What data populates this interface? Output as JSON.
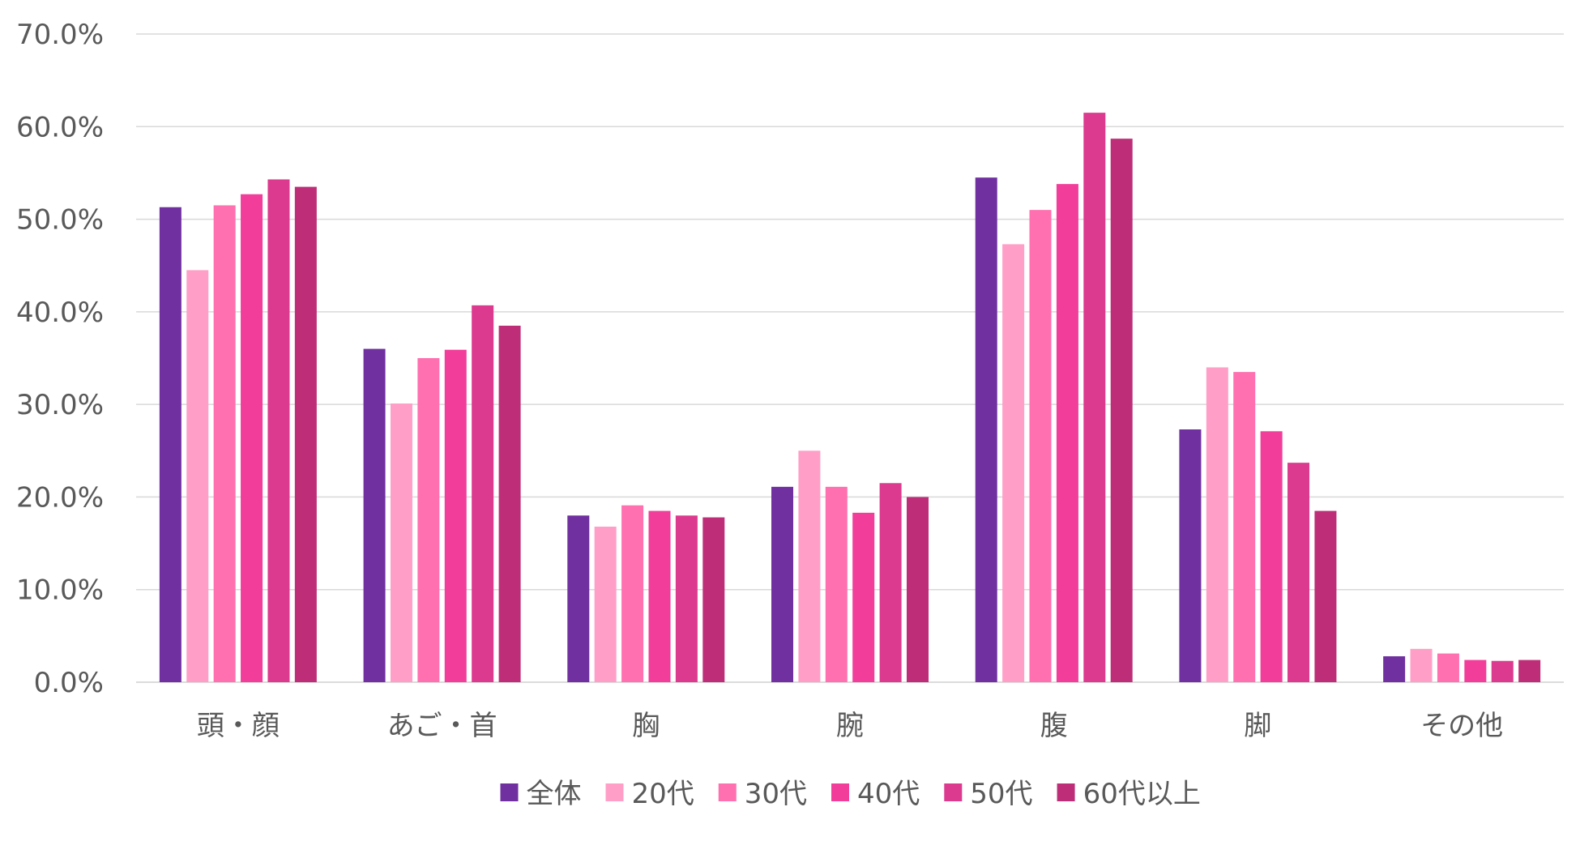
{
  "chart_data": {
    "type": "bar",
    "title": "",
    "xlabel": "",
    "ylabel": "",
    "ylim": [
      0,
      70
    ],
    "yticks": [
      "0.0%",
      "10.0%",
      "20.0%",
      "30.0%",
      "40.0%",
      "50.0%",
      "60.0%",
      "70.0%"
    ],
    "grid": true,
    "legend_position": "bottom",
    "categories": [
      "頭・顔",
      "あご・首",
      "胸",
      "腕",
      "腹",
      "脚",
      "その他"
    ],
    "series": [
      {
        "name": "全体",
        "color": "#7030A0",
        "values": [
          51.3,
          36.0,
          18.0,
          21.1,
          54.5,
          27.3,
          2.8
        ]
      },
      {
        "name": "20代",
        "color": "#FF9FC8",
        "values": [
          44.5,
          30.1,
          16.8,
          25.0,
          47.3,
          34.0,
          3.6
        ]
      },
      {
        "name": "30代",
        "color": "#FF70B0",
        "values": [
          51.5,
          35.0,
          19.1,
          21.1,
          51.0,
          33.5,
          3.1
        ]
      },
      {
        "name": "40代",
        "color": "#F23D9A",
        "values": [
          52.7,
          35.9,
          18.5,
          18.3,
          53.8,
          27.1,
          2.4
        ]
      },
      {
        "name": "50代",
        "color": "#DC3A8E",
        "values": [
          54.3,
          40.7,
          18.0,
          21.5,
          61.5,
          23.7,
          2.3
        ]
      },
      {
        "name": "60代以上",
        "color": "#BE2E78",
        "values": [
          53.5,
          38.5,
          17.8,
          20.0,
          58.7,
          18.5,
          2.4
        ]
      }
    ]
  }
}
